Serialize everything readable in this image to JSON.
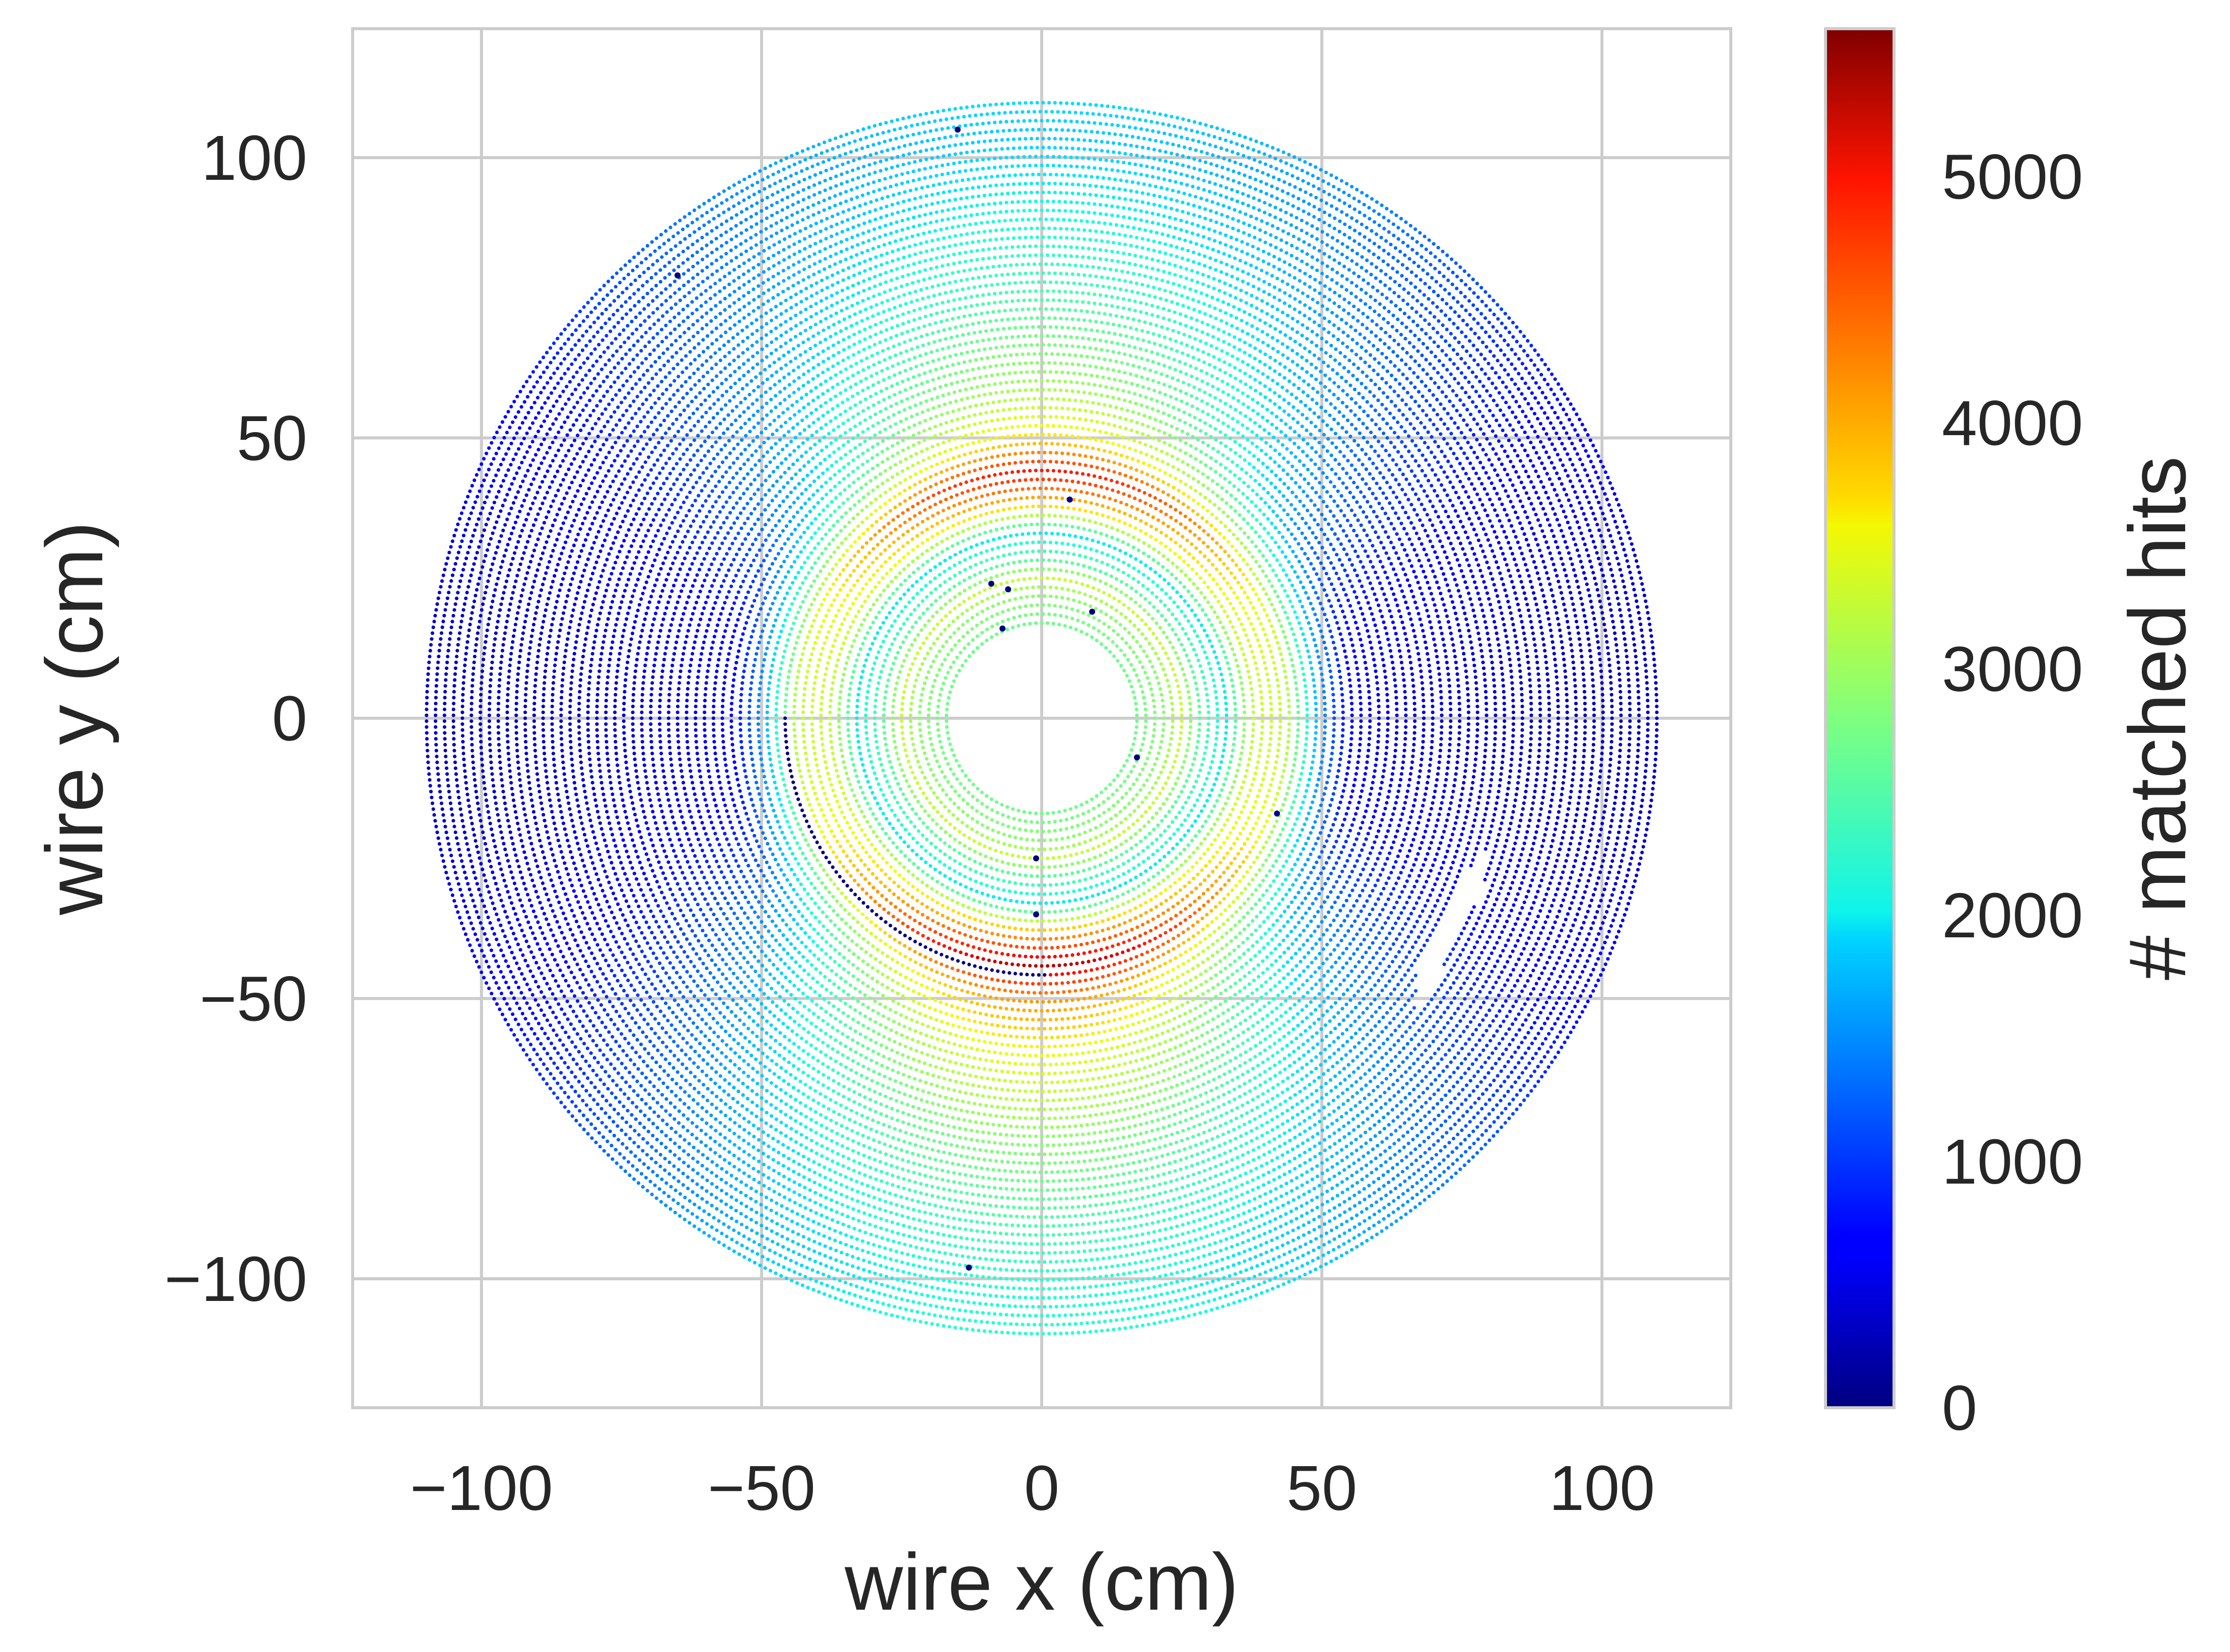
{
  "chart_data": {
    "type": "scatter",
    "title": "",
    "xlabel": "wire x (cm)",
    "ylabel": "wire y (cm)",
    "xlim": [
      -123,
      123
    ],
    "ylim": [
      -123,
      123
    ],
    "x_ticks": [
      -100,
      -50,
      0,
      50,
      100
    ],
    "y_ticks": [
      -100,
      -50,
      0,
      50,
      100
    ],
    "x_tick_labels": [
      "−100",
      "−50",
      "0",
      "50",
      "100"
    ],
    "y_tick_labels": [
      "−100",
      "−50",
      "0",
      "50",
      "100"
    ],
    "grid": true,
    "colormap": "jet",
    "colorbar": {
      "label": "# matched hits",
      "min": 0,
      "max": 5600,
      "ticks": [
        0,
        1000,
        2000,
        3000,
        4000,
        5000
      ],
      "tick_labels": [
        "0",
        "1000",
        "2000",
        "3000",
        "4000",
        "5000"
      ]
    },
    "detector_rings": {
      "inner_radius_cm": 17,
      "outer_radius_cm": 111,
      "ring_spacing_cm": 1.6,
      "wire_spacing_cm": 1.05
    },
    "matched_hits_profile": [
      {
        "r": 17,
        "hits": 2700
      },
      {
        "r": 22,
        "hits": 2900
      },
      {
        "r": 25,
        "hits": 3300
      },
      {
        "r": 28,
        "hits": 2600
      },
      {
        "r": 33,
        "hits": 2000
      },
      {
        "r": 38,
        "hits": 3900
      },
      {
        "r": 44,
        "hits": 5200
      },
      {
        "r": 50,
        "hits": 4000
      },
      {
        "r": 60,
        "hits": 3300
      },
      {
        "r": 75,
        "hits": 2700
      },
      {
        "r": 90,
        "hits": 2300
      },
      {
        "r": 104,
        "hits": 2000
      },
      {
        "r": 111,
        "hits": 2100
      }
    ],
    "dead_wire_arcs": [
      {
        "r": 46,
        "theta_start_deg": 180,
        "theta_end_deg": 271,
        "hits": 0
      }
    ],
    "gaps": [
      {
        "x": [
          67,
          79
        ],
        "y": [
          -49,
          -26
        ]
      }
    ],
    "isolated_low_points": [
      {
        "x": -15,
        "y": 105,
        "hits": 0
      },
      {
        "x": -65,
        "y": 79,
        "hits": 0
      },
      {
        "x": 5,
        "y": 39,
        "hits": 100
      },
      {
        "x": -9,
        "y": 24,
        "hits": 0
      },
      {
        "x": -6,
        "y": 23,
        "hits": 0
      },
      {
        "x": 9,
        "y": 19,
        "hits": 0
      },
      {
        "x": -7,
        "y": 16,
        "hits": 0
      },
      {
        "x": 17,
        "y": -7,
        "hits": 0
      },
      {
        "x": 42,
        "y": -17,
        "hits": 100
      },
      {
        "x": -1,
        "y": -25,
        "hits": 0
      },
      {
        "x": -1,
        "y": -35,
        "hits": 0
      },
      {
        "x": -13,
        "y": -98,
        "hits": 0
      }
    ]
  }
}
